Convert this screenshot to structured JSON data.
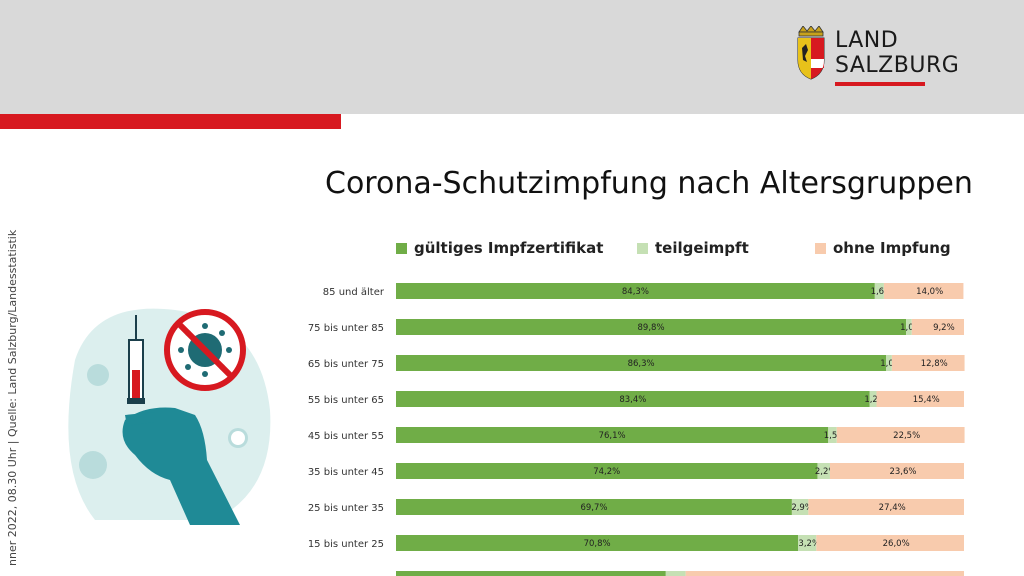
{
  "logo": {
    "line1": "LAND",
    "line2": "SALZBURG"
  },
  "side_text": "nner 2022, 08.30 Uhr | Quelle: Land Salzburg/Landesstatistik",
  "colors": {
    "vaccinated": "#70ad47",
    "partial": "#c5e0b4",
    "none": "#f8cbad",
    "red": "#d71920",
    "header": "#d9d9d9",
    "teal": "#1f8a96"
  },
  "chart_data": {
    "type": "bar",
    "orientation": "horizontal",
    "stacked": true,
    "title": "Corona-Schutzimpfung nach Altersgruppen",
    "legend_position": "top",
    "categories": [
      "85 und älter",
      "75 bis unter 85",
      "65 bis unter 75",
      "55 bis unter 65",
      "45 bis unter 55",
      "35 bis unter 45",
      "25 bis unter 35",
      "15 bis unter 25"
    ],
    "series": [
      {
        "name": "gültiges Impfzertifikat",
        "values": [
          84.3,
          89.8,
          86.3,
          83.4,
          76.1,
          74.2,
          69.7,
          70.8
        ],
        "labels": [
          "84,3%",
          "89,8%",
          "86,3%",
          "83,4%",
          "76,1%",
          "74,2%",
          "69,7%",
          "70,8%"
        ]
      },
      {
        "name": "teilgeimpft",
        "values": [
          1.6,
          1.0,
          1.0,
          1.2,
          1.5,
          2.2,
          2.9,
          3.2
        ],
        "labels": [
          "1,6%",
          "1,0%",
          "1,0%",
          "1,2%",
          "1,5%",
          "2,2%",
          "2,9%",
          "3,2%"
        ]
      },
      {
        "name": "ohne Impfung",
        "values": [
          14.0,
          9.2,
          12.8,
          15.4,
          22.5,
          23.6,
          27.4,
          26.0
        ],
        "labels": [
          "14,0%",
          "9,2%",
          "12,8%",
          "15,4%",
          "22,5%",
          "23,6%",
          "27,4%",
          "26,0%"
        ]
      }
    ],
    "xlim": [
      0,
      100
    ]
  }
}
